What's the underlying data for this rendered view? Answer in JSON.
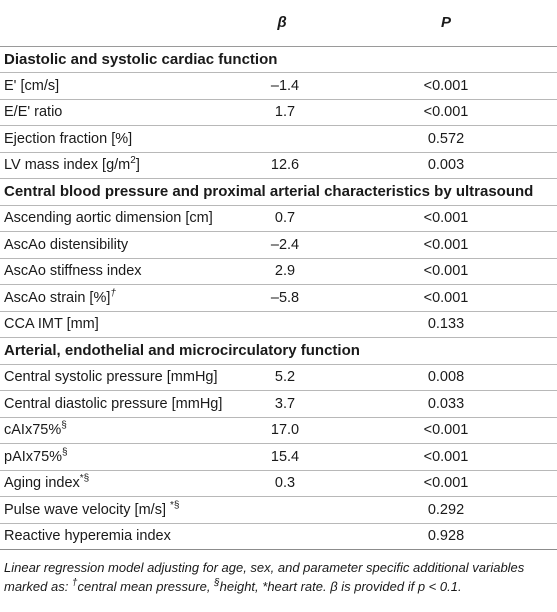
{
  "header": {
    "label": "",
    "beta": "β",
    "p": "P"
  },
  "sections": [
    {
      "title": "Diastolic and systolic cardiac function",
      "rows": [
        {
          "label": "E' [cm/s]",
          "sup": "",
          "beta": "–1.4",
          "p": "<0.001"
        },
        {
          "label": "E/E' ratio",
          "sup": "",
          "beta": "1.7",
          "p": "<0.001"
        },
        {
          "label": "Ejection fraction [%]",
          "sup": "",
          "beta": "",
          "p": "0.572"
        },
        {
          "label": "LV mass index [g/m",
          "sup": "2",
          "suffix": "]",
          "beta": "12.6",
          "p": "0.003"
        }
      ]
    },
    {
      "title": "Central blood pressure and proximal arterial characteristics by ultrasound",
      "rows": [
        {
          "label": "Ascending aortic dimension [cm]",
          "sup": "",
          "beta": "0.7",
          "p": "<0.001"
        },
        {
          "label": "AscAo distensibility",
          "sup": "",
          "beta": "–2.4",
          "p": "<0.001"
        },
        {
          "label": "AscAo stiffness index",
          "sup": "",
          "beta": "2.9",
          "p": "<0.001"
        },
        {
          "label": "AscAo strain [%]",
          "sup": "†",
          "beta": "–5.8",
          "p": "<0.001"
        },
        {
          "label": "CCA IMT [mm]",
          "sup": "",
          "beta": "",
          "p": "0.133"
        }
      ]
    },
    {
      "title": "Arterial, endothelial and microcirculatory function",
      "rows": [
        {
          "label": "Central systolic pressure [mmHg]",
          "sup": "",
          "beta": "5.2",
          "p": "0.008"
        },
        {
          "label": "Central diastolic pressure [mmHg]",
          "sup": "",
          "beta": "3.7",
          "p": "0.033"
        },
        {
          "label": "cAIx75%",
          "sup": "§",
          "beta": "17.0",
          "p": "<0.001"
        },
        {
          "label": "pAIx75%",
          "sup": "§",
          "beta": "15.4",
          "p": "<0.001"
        },
        {
          "label": "Aging index",
          "sup": "*§",
          "beta": "0.3",
          "p": "<0.001"
        },
        {
          "label": "Pulse wave velocity [m/s] ",
          "sup": "*§",
          "beta": "",
          "p": "0.292"
        },
        {
          "label": "Reactive hyperemia index",
          "sup": "",
          "beta": "",
          "p": "0.928"
        }
      ]
    }
  ],
  "footnote": {
    "line1_a": "Linear regression model adjusting for age, sex, and parameter specific additional variables",
    "line2_a": "marked as: ",
    "dagger": "†",
    "line2_b": "central mean pressure, ",
    "section": "§",
    "line2_c": "height, *heart rate. β is provided if p < 0.1."
  }
}
